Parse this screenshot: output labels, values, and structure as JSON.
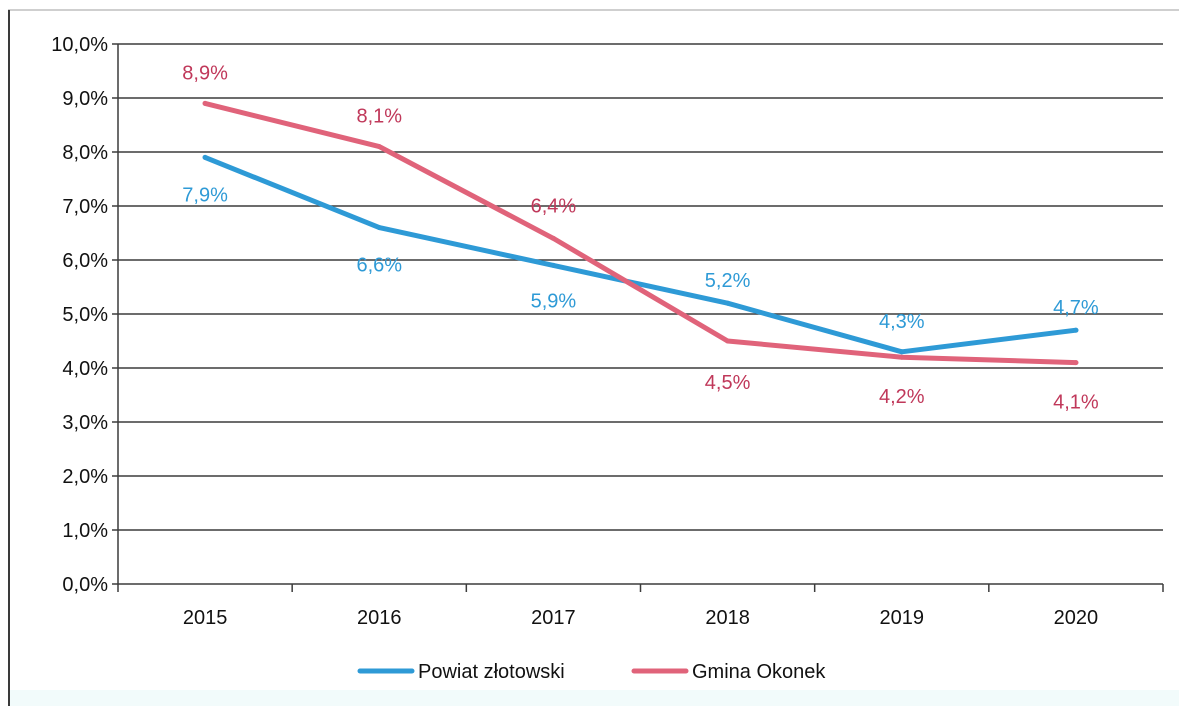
{
  "chart_data": {
    "type": "line",
    "title": "",
    "xlabel": "",
    "ylabel": "",
    "x": [
      "2015",
      "2016",
      "2017",
      "2018",
      "2019",
      "2020"
    ],
    "ylim": [
      0,
      10
    ],
    "yticks": [
      0,
      1,
      2,
      3,
      4,
      5,
      6,
      7,
      8,
      9,
      10
    ],
    "ytick_labels": [
      "0,0%",
      "1,0%",
      "2,0%",
      "3,0%",
      "4,0%",
      "5,0%",
      "6,0%",
      "7,0%",
      "8,0%",
      "9,0%",
      "10,0%"
    ],
    "grid": "horizontal",
    "legend_position": "bottom",
    "series": [
      {
        "name": "Powiat złotowski",
        "color": "#2e9ad6",
        "values": [
          7.9,
          6.6,
          5.9,
          5.2,
          4.3,
          4.7
        ],
        "labels": [
          "7,9%",
          "6,6%",
          "5,9%",
          "5,2%",
          "4,3%",
          "4,7%"
        ]
      },
      {
        "name": "Gmina Okonek",
        "color": "#e0637a",
        "label_color": "#c0385a",
        "values": [
          8.9,
          8.1,
          6.4,
          4.5,
          4.2,
          4.1
        ],
        "labels": [
          "8,9%",
          "8,1%",
          "6,4%",
          "4,5%",
          "4,2%",
          "4,1%"
        ]
      }
    ]
  }
}
